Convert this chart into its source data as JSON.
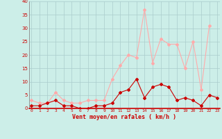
{
  "hours": [
    0,
    1,
    2,
    3,
    4,
    5,
    6,
    7,
    8,
    9,
    10,
    11,
    12,
    13,
    14,
    15,
    16,
    17,
    18,
    19,
    20,
    21,
    22,
    23
  ],
  "vent_moyen": [
    1,
    1,
    2,
    3,
    1,
    1,
    0,
    0,
    1,
    1,
    2,
    6,
    7,
    11,
    4,
    8,
    9,
    8,
    3,
    4,
    3,
    1,
    5,
    4
  ],
  "en_rafales": [
    3,
    2,
    2,
    6,
    3,
    2,
    2,
    3,
    3,
    3,
    11,
    16,
    20,
    19,
    37,
    17,
    26,
    24,
    24,
    15,
    25,
    7,
    31,
    null
  ],
  "color_moyen": "#cc0000",
  "color_rafales": "#ffaaaa",
  "bg_color": "#cceee8",
  "grid_color": "#aacccc",
  "xlabel": "Vent moyen/en rafales ( km/h )",
  "xlabel_color": "#cc0000",
  "ylim": [
    0,
    40
  ],
  "yticks": [
    0,
    5,
    10,
    15,
    20,
    25,
    30,
    35,
    40
  ],
  "ytick_labels": [
    "0",
    "5",
    "10",
    "15",
    "20",
    "25",
    "30",
    "35",
    "40"
  ]
}
